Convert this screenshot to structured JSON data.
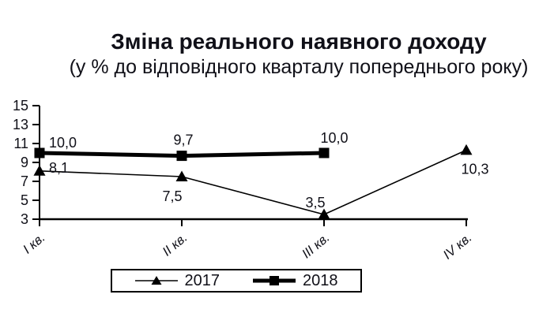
{
  "title": "Зміна реального наявного доходу",
  "subtitle": "(у % до відповідного кварталу попереднього року)",
  "chart_data": {
    "type": "line",
    "categories": [
      "І кв.",
      "ІІ кв.",
      "ІІІ кв.",
      "ІV кв."
    ],
    "series": [
      {
        "name": "2017",
        "marker": "triangle",
        "line_width": 1.6,
        "values": [
          8.1,
          7.5,
          3.5,
          10.3
        ],
        "point_labels": [
          "8,1",
          "7,5",
          "3,5",
          "10,3"
        ]
      },
      {
        "name": "2018",
        "marker": "square",
        "line_width": 5,
        "values": [
          10.0,
          9.7,
          10.0,
          null
        ],
        "point_labels": [
          "10,0",
          "9,7",
          "10,0"
        ]
      }
    ],
    "ylim": [
      3,
      15
    ],
    "yticks": [
      3,
      5,
      7,
      9,
      11,
      13,
      15
    ],
    "grid": false,
    "legend_position": "bottom-center",
    "line_color": "#000000",
    "background": "#ffffff",
    "decimal_separator": ","
  }
}
